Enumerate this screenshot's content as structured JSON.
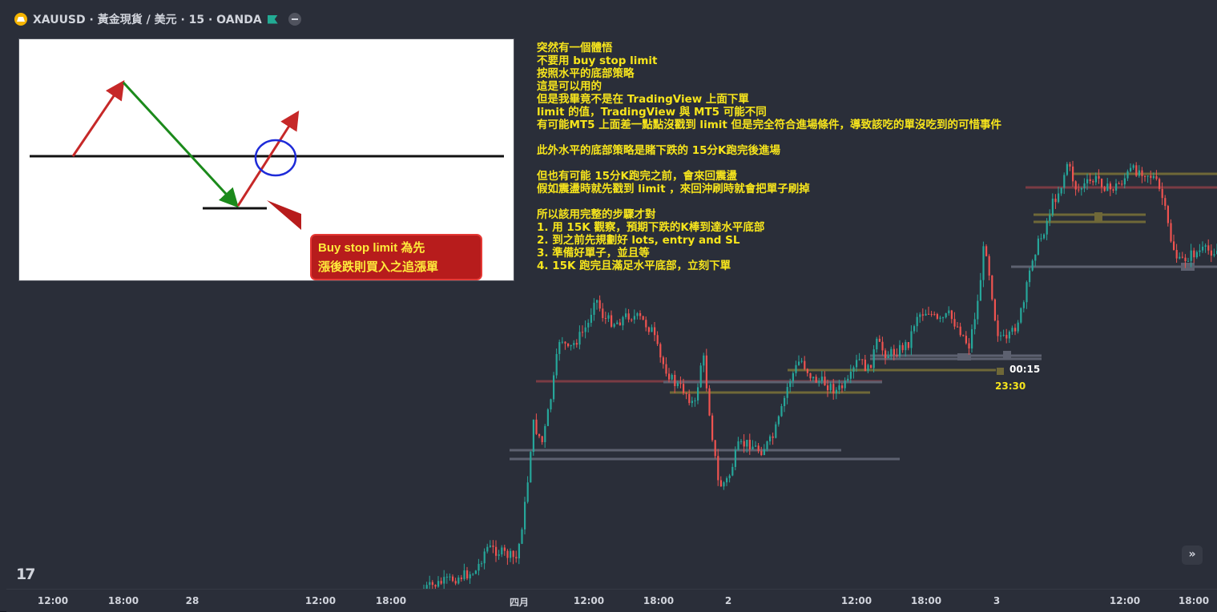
{
  "header": {
    "symbol_title": "XAUUSD · 黃金現貨 / 美元 · 15 · OANDA"
  },
  "image_callout": {
    "line1": "Buy stop limit 為先",
    "line2": "漲後跌則買入之追漲單"
  },
  "note_lines": [
    "突然有一個體悟",
    "不要用 buy stop limit",
    "按照水平的底部策略",
    "這是可以用的",
    "但是我畢竟不是在 TradingView 上面下單",
    "limit 的值，TradingView 與 MT5 可能不同",
    "有可能MT5 上面差一點點沒戳到 limit 但是完全符合進場條件，導致該吃的單沒吃到的可惜事件",
    "",
    "此外水平的底部策略是賭下跌的 15分K跑完後進場",
    "",
    "但也有可能 15分K跑完之前，會來回震盪",
    "假如震盪時就先戳到 limit ，來回沖刷時就會把單子刷掉",
    "",
    "所以該用完整的步驟才對",
    "1. 用 15K 觀察，預期下跌的K棒到達水平底部",
    "2. 到之前先規劃好 lots, entry and SL",
    "3. 準備好單子，並且等",
    "4. 15K 跑完且滿足水平底部，立刻下單"
  ],
  "chart_labels": {
    "time_label_1": "00:15",
    "time_label_2": "23:30"
  },
  "time_axis": [
    "12:00",
    "18:00",
    "28",
    "12:00",
    "18:00",
    "四月",
    "12:00",
    "18:00",
    "2",
    "12:00",
    "18:00",
    "3",
    "12:00",
    "18:00"
  ],
  "icons": {
    "symbol_logo": "gold-coin-icon",
    "flag": "flag-icon",
    "collapse": "minus-icon",
    "brand": "tradingview-logo",
    "scroll": "double-chevron-right-icon"
  },
  "colors": {
    "background": "#2a2e39",
    "up_candle": "#26a69a",
    "down_candle": "#ef5350",
    "note_text": "#f7e51c"
  }
}
